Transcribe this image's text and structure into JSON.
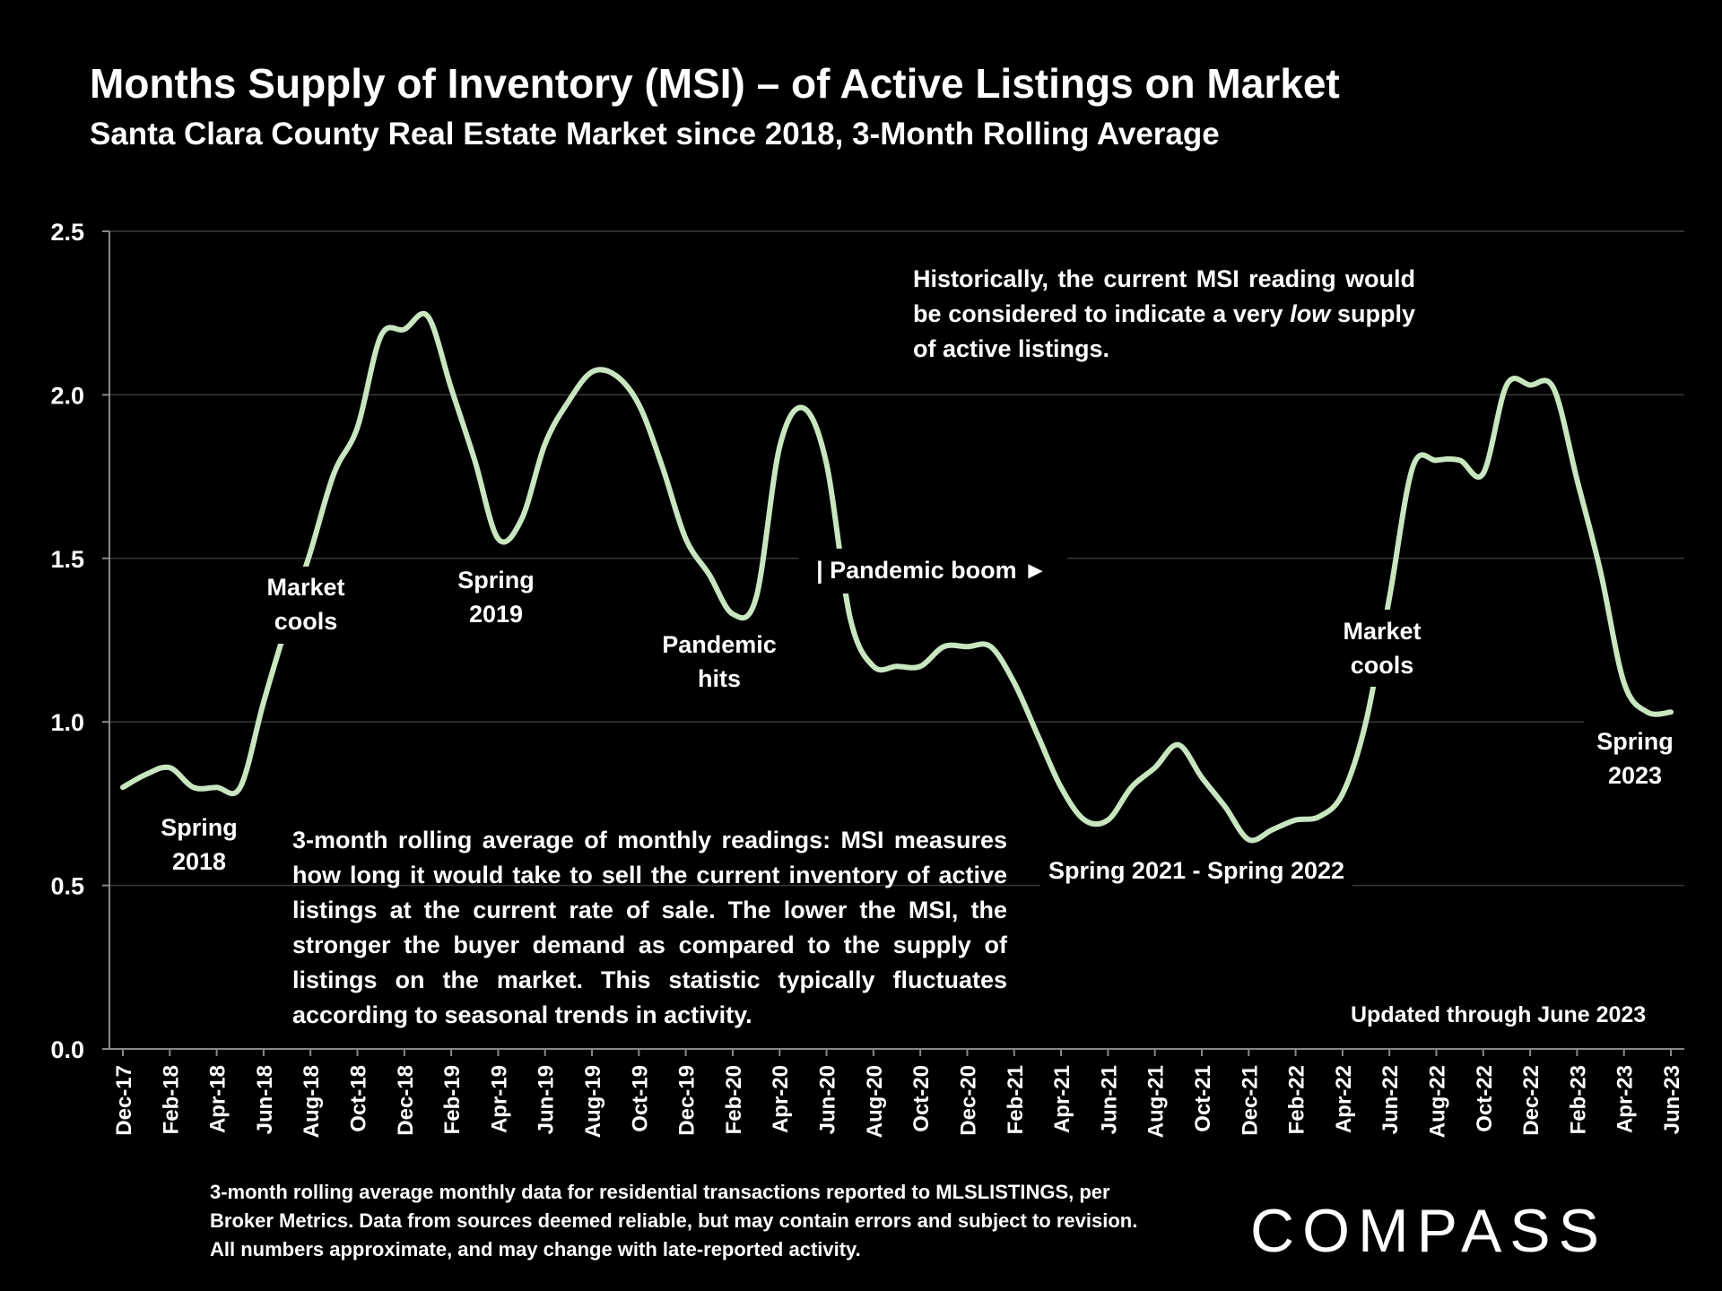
{
  "header": {
    "title": "Months Supply of Inventory (MSI) – of Active Listings on Market",
    "subtitle": "Santa Clara County Real Estate Market since 2018, 3-Month Rolling Average"
  },
  "chart_data": {
    "type": "line",
    "ylim": [
      0,
      2.5
    ],
    "yticks": [
      "0.0",
      "0.5",
      "1.0",
      "1.5",
      "2.0",
      "2.5"
    ],
    "ytick_values": [
      0,
      0.5,
      1.0,
      1.5,
      2.0,
      2.5
    ],
    "grid": true,
    "xtick_labels": [
      "Dec-17",
      "Feb-18",
      "Apr-18",
      "Jun-18",
      "Aug-18",
      "Oct-18",
      "Dec-18",
      "Feb-19",
      "Apr-19",
      "Jun-19",
      "Aug-19",
      "Oct-19",
      "Dec-19",
      "Feb-20",
      "Apr-20",
      "Jun-20",
      "Aug-20",
      "Oct-20",
      "Dec-20",
      "Feb-21",
      "Apr-21",
      "Jun-21",
      "Aug-21",
      "Oct-21",
      "Dec-21",
      "Feb-22",
      "Apr-22",
      "Jun-22",
      "Aug-22",
      "Oct-22",
      "Dec-22",
      "Feb-23",
      "Apr-23",
      "Jun-23"
    ],
    "series": [
      {
        "name": "MSI 3-month rolling average",
        "color": "#c8e6c0",
        "values": [
          0.8,
          0.84,
          0.86,
          0.8,
          0.8,
          0.8,
          1.06,
          1.3,
          1.52,
          1.76,
          1.9,
          2.18,
          2.2,
          2.24,
          2.02,
          1.8,
          1.56,
          1.62,
          1.85,
          1.98,
          2.07,
          2.06,
          1.97,
          1.78,
          1.56,
          1.45,
          1.33,
          1.38,
          1.84,
          1.96,
          1.79,
          1.32,
          1.17,
          1.17,
          1.17,
          1.23,
          1.23,
          1.23,
          1.12,
          0.96,
          0.8,
          0.7,
          0.7,
          0.8,
          0.86,
          0.93,
          0.83,
          0.74,
          0.64,
          0.67,
          0.7,
          0.71,
          0.78,
          1.0,
          1.38,
          1.78,
          1.8,
          1.8,
          1.76,
          2.03,
          2.03,
          2.02,
          1.74,
          1.46,
          1.12,
          1.03,
          1.03
        ]
      }
    ],
    "annotations": [
      {
        "text": "Spring 2018",
        "lines": [
          "Spring",
          "2018"
        ]
      },
      {
        "text": "Market cools",
        "lines": [
          "Market",
          "cools"
        ]
      },
      {
        "text": "Spring 2019",
        "lines": [
          "Spring",
          "2019"
        ]
      },
      {
        "text": "Pandemic hits",
        "lines": [
          "Pandemic",
          "hits"
        ]
      },
      {
        "text": "| Pandemic boom ►",
        "lines": [
          "| Pandemic boom ►"
        ]
      },
      {
        "text": "Spring 2021 - Spring 2022",
        "lines": [
          "Spring 2021 - Spring 2022"
        ]
      },
      {
        "text": "Market cools",
        "lines": [
          "Market",
          "cools"
        ]
      },
      {
        "text": "Spring 2023",
        "lines": [
          "Spring",
          "2023"
        ]
      }
    ]
  },
  "notes": {
    "top_part1": "Historically, the current MSI reading would be considered to indicate a very ",
    "top_emphasis": "low",
    "top_part2": " supply of active listings.",
    "body": "3-month rolling average of monthly readings: MSI measures how long it would take to sell the current inventory of active listings at the current rate of sale. The lower the MSI, the stronger the buyer demand as compared to the supply of listings on the market. This statistic typically fluctuates according to seasonal trends in activity.",
    "updated": "Updated through June 2023",
    "footnote": "3-month rolling average monthly data for residential transactions reported to MLSLISTINGS, per Broker Metrics. Data from sources deemed reliable, but may contain errors and subject to revision. All numbers approximate, and may change with late-reported activity."
  },
  "brand": {
    "logo": "COMPASS"
  },
  "colors": {
    "background": "#000000",
    "line": "#c8e6c0",
    "grid": "#3a3a3a",
    "text": "#ffffff"
  }
}
